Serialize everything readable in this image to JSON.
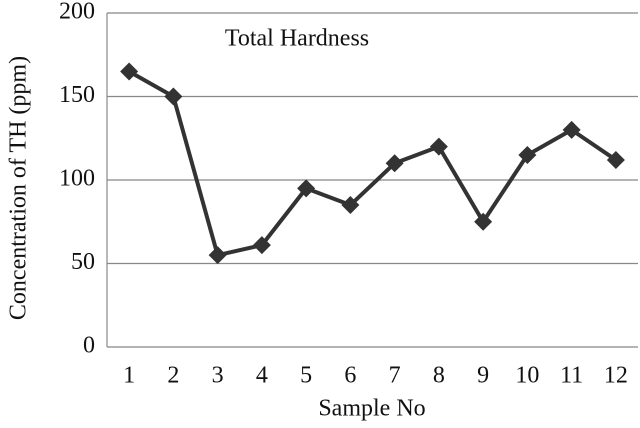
{
  "chart_data": {
    "type": "line",
    "title": "Total Hardness",
    "x_label": "Sample No",
    "y_label": "Concentration of TH (ppm)",
    "categories": [
      "1",
      "2",
      "3",
      "4",
      "5",
      "6",
      "7",
      "8",
      "9",
      "10",
      "11",
      "12"
    ],
    "values": [
      165,
      150,
      55,
      61,
      95,
      85,
      110,
      120,
      75,
      115,
      130,
      112
    ],
    "color": "#333333",
    "ylim": [
      0,
      200
    ],
    "yticks": [
      0,
      50,
      100,
      150,
      200
    ],
    "grid": true
  }
}
